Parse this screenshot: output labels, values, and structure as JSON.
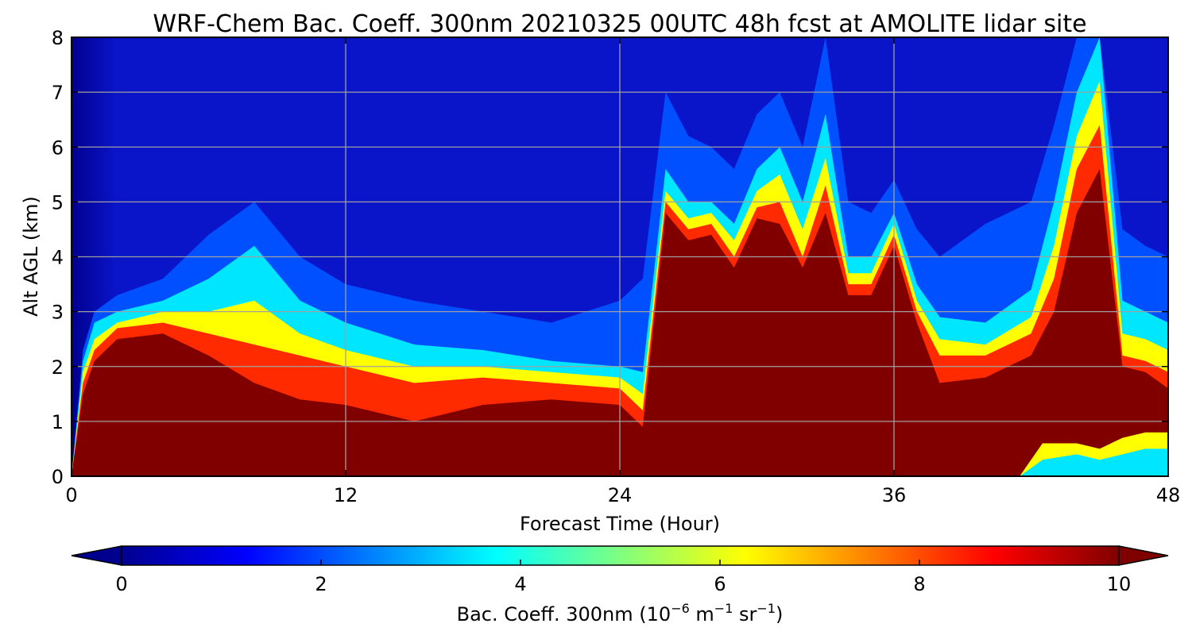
{
  "chart_data": {
    "type": "heatmap",
    "title": "WRF-Chem Bac. Coeff. 300nm  20210325 00UTC 48h fcst at AMOLITE lidar site",
    "xlabel": "Forecast Time (Hour)",
    "ylabel": "Alt AGL (km)",
    "xlim": [
      0,
      48
    ],
    "ylim": [
      0,
      8
    ],
    "x_ticks": [
      "0",
      "12",
      "24",
      "36",
      "48"
    ],
    "y_ticks": [
      "0",
      "1",
      "2",
      "3",
      "4",
      "5",
      "6",
      "7",
      "8"
    ],
    "grid": true,
    "colormap": "jet",
    "colorbar": {
      "orientation": "horizontal",
      "position": "bottom",
      "extend": "both",
      "range": [
        0,
        10
      ],
      "ticks": [
        "0",
        "2",
        "4",
        "6",
        "8",
        "10"
      ],
      "label_main": "Bac. Coeff. 300nm  (10",
      "label_exp1": "−6",
      "label_mid": " m",
      "label_exp2": "−1",
      "label_mid2": " sr",
      "label_exp3": "−1",
      "label_end": ")"
    },
    "times_hr": [
      0,
      0.5,
      1,
      2,
      4,
      6,
      8,
      10,
      12,
      15,
      18,
      21,
      24,
      25,
      26,
      27,
      28,
      29,
      30,
      31,
      32,
      33,
      34,
      35,
      36,
      37,
      38,
      40,
      42,
      43,
      44,
      45,
      46,
      47,
      48
    ],
    "layers": [
      {
        "level": 10,
        "color": "#800000",
        "top_km": [
          0,
          1.5,
          2.1,
          2.5,
          2.6,
          2.2,
          1.7,
          1.4,
          1.3,
          1.0,
          1.3,
          1.4,
          1.3,
          0.9,
          4.8,
          4.3,
          4.4,
          3.8,
          4.7,
          4.6,
          3.8,
          4.8,
          3.3,
          3.3,
          4.2,
          2.8,
          1.7,
          1.8,
          2.2,
          3.0,
          4.8,
          5.6,
          2.0,
          1.9,
          1.6
        ]
      },
      {
        "level": 8,
        "color": "#ff2a00",
        "top_km": [
          0,
          1.7,
          2.3,
          2.7,
          2.8,
          2.6,
          2.4,
          2.2,
          2.0,
          1.7,
          1.8,
          1.7,
          1.6,
          1.2,
          5.0,
          4.5,
          4.6,
          4.0,
          4.9,
          5.0,
          4.0,
          5.3,
          3.5,
          3.5,
          4.4,
          3.0,
          2.2,
          2.2,
          2.6,
          3.6,
          5.6,
          6.4,
          2.2,
          2.1,
          1.9
        ]
      },
      {
        "level": 6,
        "color": "#ffff00",
        "top_km": [
          0,
          1.9,
          2.5,
          2.8,
          3.0,
          3.0,
          3.2,
          2.6,
          2.3,
          2.0,
          2.0,
          1.9,
          1.8,
          1.5,
          5.2,
          4.7,
          4.8,
          4.3,
          5.2,
          5.5,
          4.5,
          5.8,
          3.7,
          3.7,
          4.6,
          3.2,
          2.5,
          2.4,
          2.9,
          4.2,
          6.2,
          7.2,
          2.6,
          2.5,
          2.3
        ]
      },
      {
        "level": 4,
        "color": "#00e6ff",
        "top_km": [
          0,
          2.1,
          2.8,
          3.0,
          3.2,
          3.6,
          4.2,
          3.2,
          2.8,
          2.4,
          2.3,
          2.1,
          2.0,
          1.9,
          5.6,
          5.0,
          5.0,
          4.6,
          5.6,
          6.0,
          5.0,
          6.6,
          4.0,
          4.0,
          4.8,
          3.5,
          2.9,
          2.8,
          3.4,
          5.0,
          7.0,
          8.0,
          3.2,
          3.0,
          2.8
        ]
      },
      {
        "level": 2,
        "color": "#0050ff",
        "top_km": [
          0,
          2.3,
          3.0,
          3.3,
          3.6,
          4.4,
          5.0,
          4.0,
          3.5,
          3.2,
          3.0,
          2.8,
          3.2,
          3.6,
          7.0,
          6.2,
          6.0,
          5.6,
          6.6,
          7.0,
          6.0,
          8.0,
          5.0,
          4.8,
          5.4,
          4.5,
          4.0,
          4.6,
          5.0,
          6.4,
          8.0,
          8.0,
          4.5,
          4.2,
          4.0
        ]
      }
    ],
    "background_color": "#0a14c8",
    "surface_layer": {
      "hours": [
        41.5,
        42.5,
        44,
        45,
        46,
        47,
        48
      ],
      "levels": [
        {
          "level": 6,
          "color": "#ffff00",
          "top_km": [
            0,
            0.6,
            0.6,
            0.5,
            0.7,
            0.8,
            0.8
          ]
        },
        {
          "level": 4,
          "color": "#00e6ff",
          "top_km": [
            0,
            0.3,
            0.4,
            0.3,
            0.4,
            0.5,
            0.5
          ]
        }
      ]
    }
  }
}
